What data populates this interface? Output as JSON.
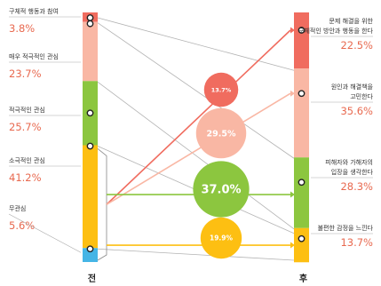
{
  "chart_data": {
    "type": "stacked-bar-flow",
    "colors": {
      "red": "#f06c5f",
      "pink": "#f9b7a4",
      "green": "#8cc63f",
      "yellow": "#fdbf12",
      "blue": "#45b5e6",
      "gray": "#b3b3b3"
    },
    "before": {
      "axis_label": "전",
      "segments": [
        {
          "label": [
            "구체적 행동과 참여"
          ],
          "value": 3.8,
          "pct": "3.8%",
          "color": "red"
        },
        {
          "label": [
            "매우 적극적인 관심"
          ],
          "value": 23.7,
          "pct": "23.7%",
          "color": "pink"
        },
        {
          "label": [
            "적극적인 관심"
          ],
          "value": 25.7,
          "pct": "25.7%",
          "color": "green"
        },
        {
          "label": [
            "소극적인 관심"
          ],
          "value": 41.2,
          "pct": "41.2%",
          "color": "yellow"
        },
        {
          "label": [
            "무관심"
          ],
          "value": 5.6,
          "pct": "5.6%",
          "color": "blue"
        }
      ]
    },
    "after": {
      "axis_label": "후",
      "segments": [
        {
          "label": [
            "문제 해결을 위한",
            "구체적인 방안과 행동을 한다"
          ],
          "value": 22.5,
          "pct": "22.5%",
          "color": "red"
        },
        {
          "label": [
            "원인과 해결책을",
            "고민한다"
          ],
          "value": 35.6,
          "pct": "35.6%",
          "color": "pink"
        },
        {
          "label": [
            "피해자와 가해자의",
            "입장을 생각한다"
          ],
          "value": 28.3,
          "pct": "28.3%",
          "color": "green"
        },
        {
          "label": [
            "불편한 감정을 느낀다"
          ],
          "value": 13.7,
          "pct": "13.7%",
          "color": "yellow"
        }
      ]
    },
    "flows": [
      {
        "to": 0,
        "value": 13.7,
        "label": "13.7%",
        "color": "red"
      },
      {
        "to": 1,
        "value": 29.5,
        "label": "29.5%",
        "color": "pink"
      },
      {
        "to": 2,
        "value": 37.0,
        "label": "37.0%",
        "color": "green"
      },
      {
        "to": 3,
        "value": 19.9,
        "label": "19.9%",
        "color": "yellow"
      }
    ]
  }
}
